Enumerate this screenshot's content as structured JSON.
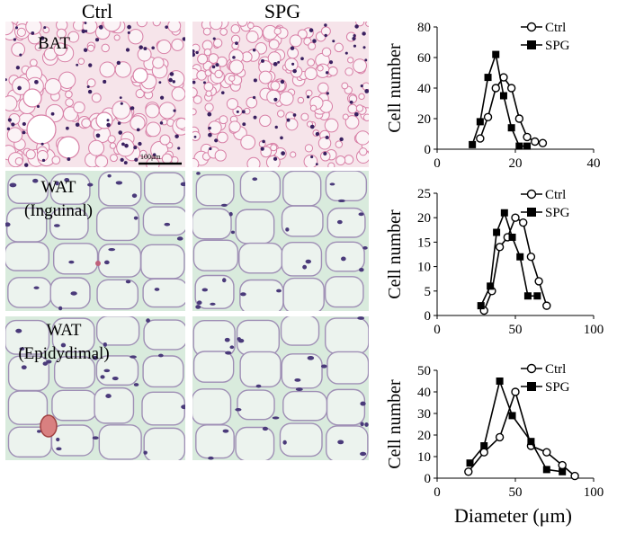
{
  "columns": [
    "Ctrl",
    "SPG"
  ],
  "tissues": [
    {
      "id": "bat",
      "label_lines": [
        "BAT"
      ],
      "scale_bar_text": "100μm"
    },
    {
      "id": "wat-inguinal",
      "label_lines": [
        "WAT",
        "(Inguinal)"
      ]
    },
    {
      "id": "wat-epididymal",
      "label_lines": [
        "WAT",
        "(Epidydimal)"
      ]
    }
  ],
  "colors": {
    "bat_bg": "#f6e4ea",
    "bat_membrane": "#d87fa6",
    "bat_nucleus": "#3a2060",
    "wat_bg": "#d9ebdd",
    "wat_membrane": "#9f8fb5",
    "wat_cell": "#ecf3ee",
    "ctrl_marker": "#ffffff",
    "spg_marker": "#000000",
    "line": "#000000"
  },
  "x_axis_title": "Diameter (μm)",
  "chart_data": [
    {
      "type": "line",
      "ylabel": "Cell number",
      "xlim": [
        0,
        40
      ],
      "ylim": [
        0,
        80
      ],
      "xticks": [
        0,
        20,
        40
      ],
      "yticks": [
        0,
        20,
        40,
        60,
        80
      ],
      "legend_position": "top-right",
      "series": [
        {
          "name": "Ctrl",
          "marker": "open-circle",
          "x": [
            11,
            13,
            15,
            17,
            19,
            21,
            23,
            25,
            27
          ],
          "y": [
            7,
            21,
            40,
            47,
            40,
            20,
            8,
            5,
            4
          ]
        },
        {
          "name": "SPG",
          "marker": "filled-square",
          "x": [
            9,
            11,
            13,
            15,
            17,
            19,
            21,
            23
          ],
          "y": [
            3,
            18,
            47,
            62,
            35,
            14,
            2,
            2
          ]
        }
      ]
    },
    {
      "type": "line",
      "ylabel": "Cell number",
      "xlim": [
        0,
        100
      ],
      "ylim": [
        0,
        25
      ],
      "xticks": [
        0,
        50,
        100
      ],
      "yticks": [
        0,
        5,
        10,
        15,
        20,
        25
      ],
      "legend_position": "top-right",
      "series": [
        {
          "name": "Ctrl",
          "marker": "open-circle",
          "x": [
            30,
            35,
            40,
            45,
            50,
            55,
            60,
            65,
            70
          ],
          "y": [
            1,
            5,
            14,
            16,
            20,
            19,
            12,
            7,
            2
          ]
        },
        {
          "name": "SPG",
          "marker": "filled-square",
          "x": [
            28,
            34,
            38,
            43,
            48,
            53,
            58,
            64
          ],
          "y": [
            2,
            6,
            17,
            21,
            16,
            12,
            4,
            4
          ]
        }
      ]
    },
    {
      "type": "line",
      "ylabel": "Cell number",
      "xlim": [
        0,
        100
      ],
      "ylim": [
        0,
        50
      ],
      "xticks": [
        0,
        50,
        100
      ],
      "yticks": [
        0,
        10,
        20,
        30,
        40,
        50
      ],
      "legend_position": "top-right",
      "series": [
        {
          "name": "Ctrl",
          "marker": "open-circle",
          "x": [
            20,
            30,
            40,
            50,
            60,
            70,
            80,
            88
          ],
          "y": [
            3,
            12,
            19,
            40,
            15,
            12,
            6,
            1
          ]
        },
        {
          "name": "SPG",
          "marker": "filled-square",
          "x": [
            21,
            30,
            40,
            48,
            60,
            70,
            80
          ],
          "y": [
            7,
            15,
            45,
            29,
            17,
            4,
            3
          ]
        }
      ]
    }
  ]
}
